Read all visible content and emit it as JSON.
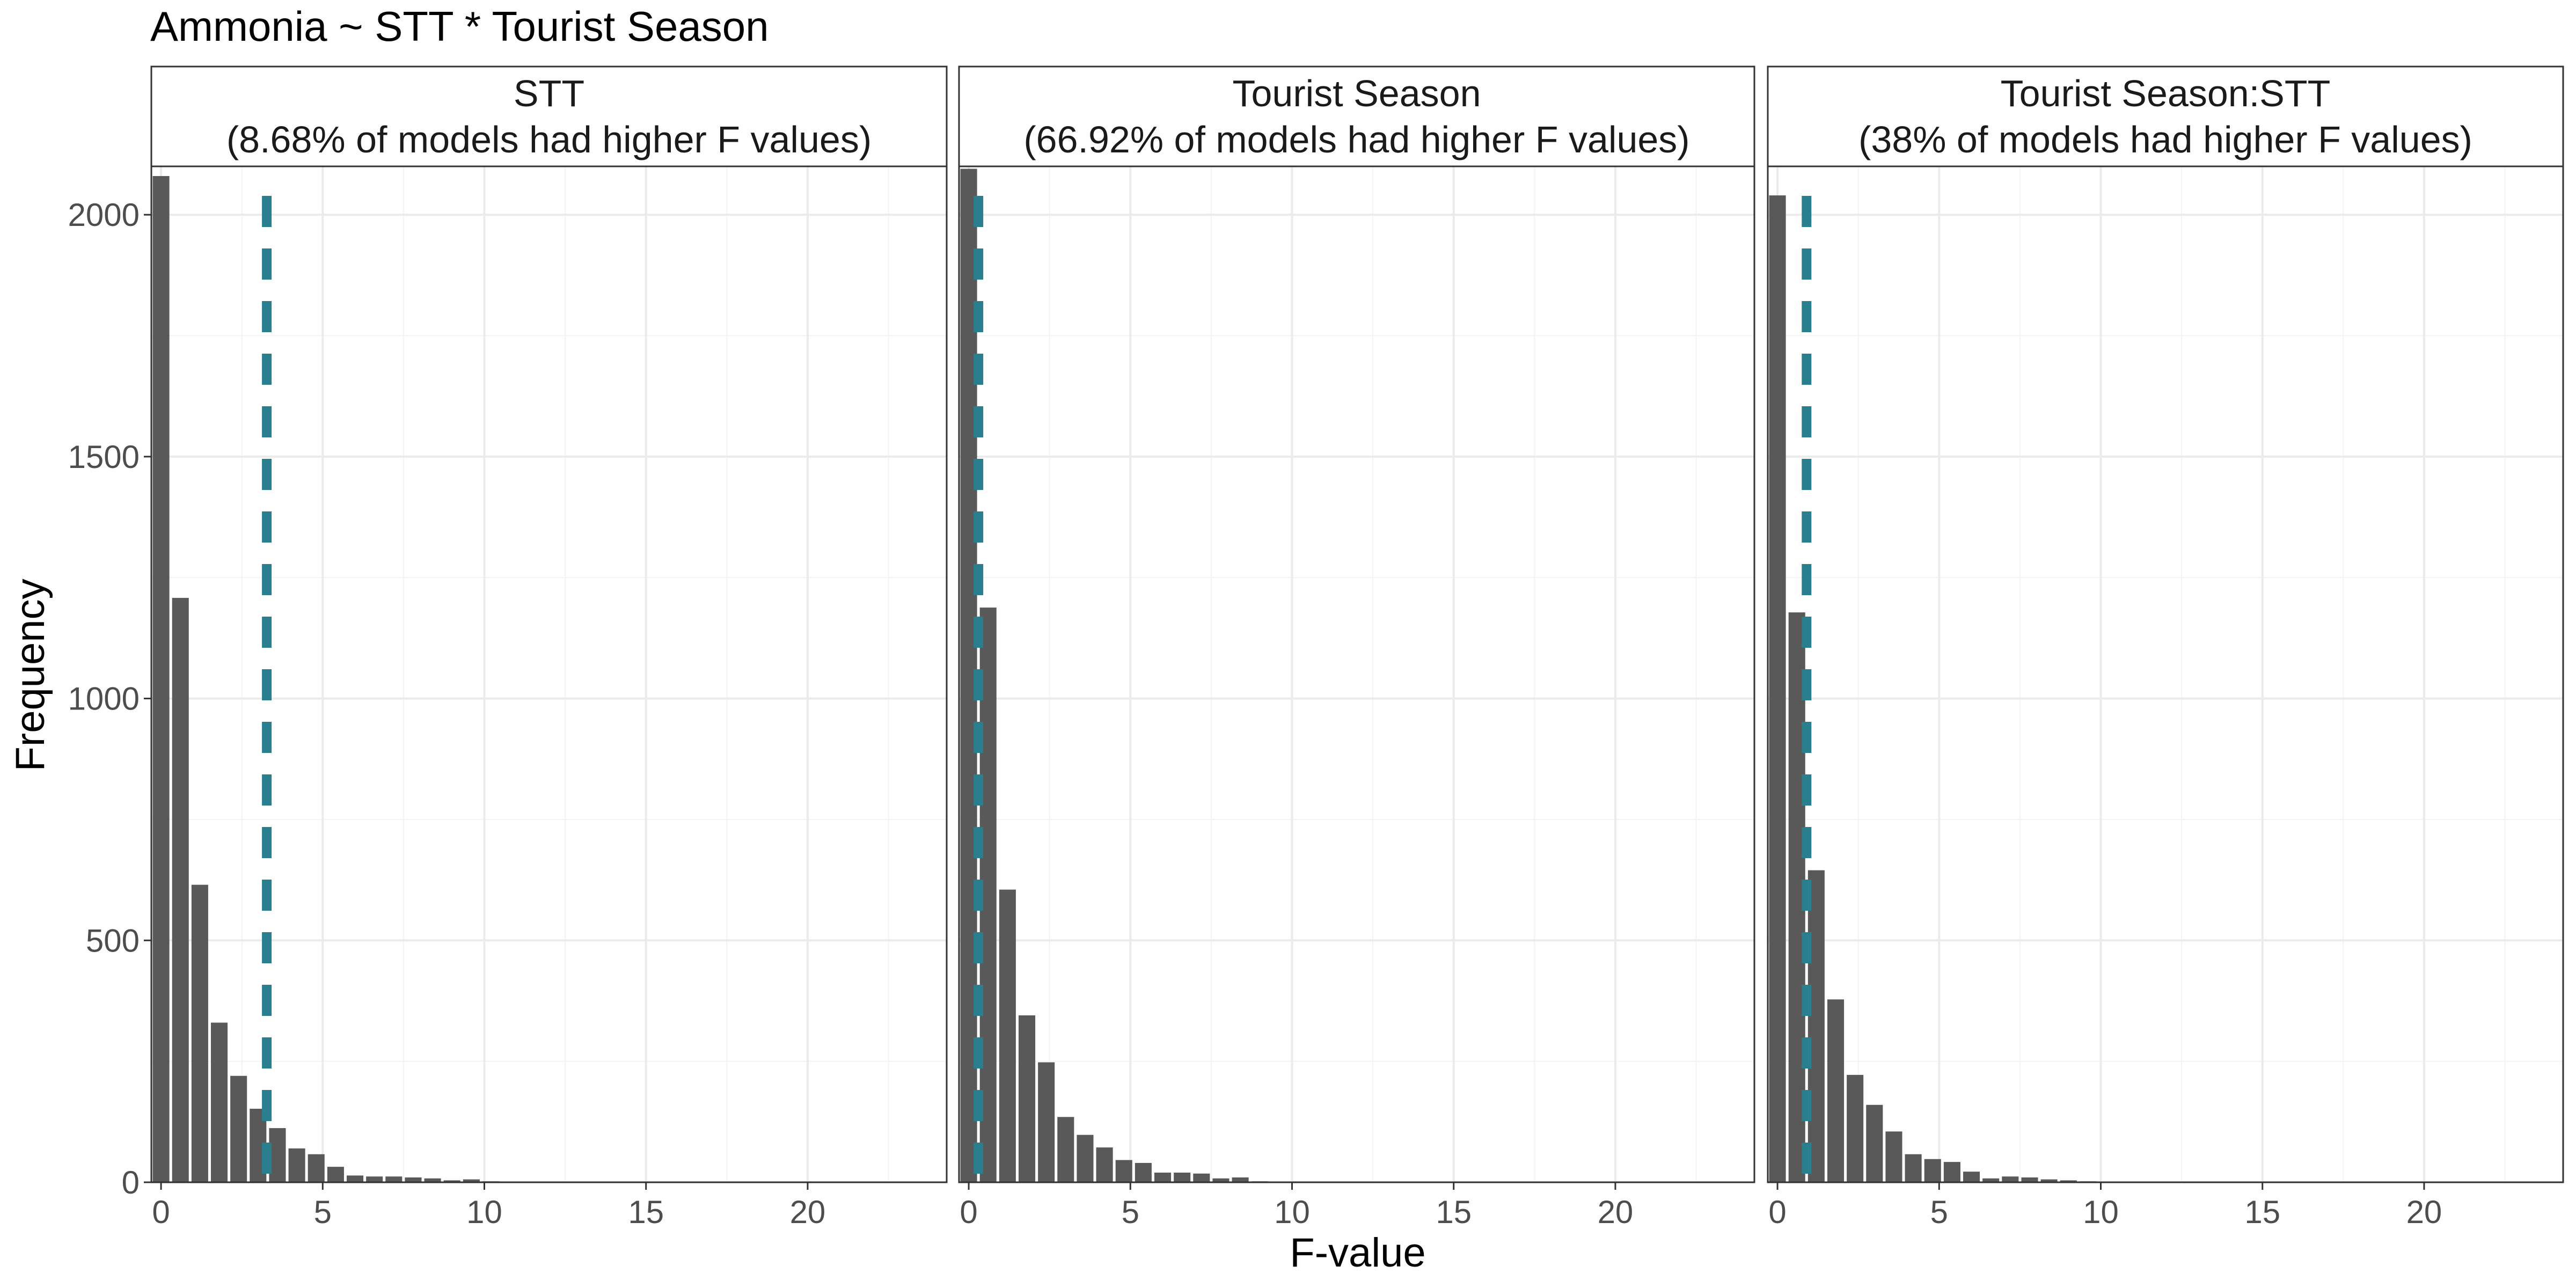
{
  "chart_data": {
    "type": "bar",
    "title": "Ammonia ~ STT * Tourist Season",
    "xlabel": "F-value",
    "ylabel": "Frequency",
    "xlim": [
      -0.3,
      24.3
    ],
    "ylim": [
      0,
      2100
    ],
    "x_ticks": [
      "0",
      "5",
      "10",
      "15",
      "20"
    ],
    "y_ticks": [
      "0",
      "500",
      "1000",
      "1500",
      "2000"
    ],
    "grid": true,
    "legend": "none",
    "bin_width": 0.6,
    "colors": {
      "bar": "#595959",
      "reference_line": "#2a7f8f",
      "grid": "#ebebeb",
      "strip_bg": "#ffffff",
      "border": "#333333"
    },
    "panels": [
      {
        "strip_label_line1": "STT",
        "strip_label_line2": "(8.68% of models had higher F values)",
        "observed_F": 3.27,
        "bin_centers": [
          0,
          0.6,
          1.2,
          1.8,
          2.4,
          3.0,
          3.6,
          4.2,
          4.8,
          5.4,
          6.0,
          6.6,
          7.2,
          7.8,
          8.4,
          9.0,
          9.6,
          10.2
        ],
        "values": [
          2080,
          1208,
          615,
          330,
          220,
          152,
          112,
          70,
          58,
          32,
          14,
          12,
          12,
          10,
          8,
          4,
          6,
          2
        ]
      },
      {
        "strip_label_line1": "Tourist Season",
        "strip_label_line2": "(66.92% of models had higher F values)",
        "observed_F": 0.3,
        "bin_centers": [
          0,
          0.6,
          1.2,
          1.8,
          2.4,
          3.0,
          3.6,
          4.2,
          4.8,
          5.4,
          6.0,
          6.6,
          7.2,
          7.8,
          8.4,
          9.0
        ],
        "values": [
          2095,
          1188,
          605,
          345,
          248,
          135,
          98,
          72,
          46,
          40,
          20,
          20,
          18,
          8,
          10,
          2
        ]
      },
      {
        "strip_label_line1": "Tourist Season:STT",
        "strip_label_line2": "(38% of models had higher F values)",
        "observed_F": 0.9,
        "bin_centers": [
          0,
          0.6,
          1.2,
          1.8,
          2.4,
          3.0,
          3.6,
          4.2,
          4.8,
          5.4,
          6.0,
          6.6,
          7.2,
          7.8,
          8.4,
          9.0,
          9.6
        ],
        "values": [
          2040,
          1178,
          645,
          378,
          222,
          160,
          105,
          58,
          48,
          42,
          22,
          8,
          12,
          10,
          6,
          4,
          2
        ]
      }
    ]
  }
}
